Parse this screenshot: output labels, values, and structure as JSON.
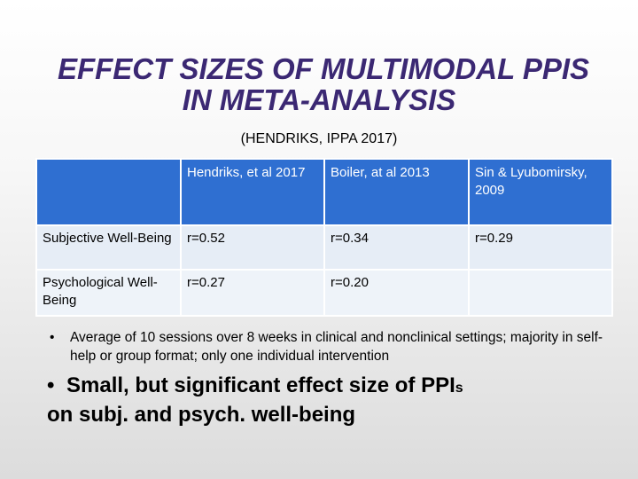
{
  "slide": {
    "title_line1": "EFFECT SIZES OF MULTIMODAL PPIS",
    "title_line2": "IN META-ANALYSIS",
    "subtitle": "(HENDRIKS, IPPA 2017)"
  },
  "table": {
    "headers": [
      "",
      "Hendriks, et al 2017",
      "Boiler, at al 2013",
      "Sin & Lyubomirsky, 2009"
    ],
    "rows": [
      [
        "Subjective Well-Being",
        "r=0.52",
        "r=0.34",
        "r=0.29"
      ],
      [
        "Psychological Well-Being",
        "r=0.27",
        "r=0.20",
        ""
      ]
    ]
  },
  "bullets": {
    "marker": "•",
    "item1": "Average of 10 sessions over 8 weeks in clinical and nonclinical settings; majority in self-help or group format; only one individual intervention",
    "item2_main": "Small, but significant effect size of PPI",
    "item2_small_s": "s",
    "item2_tail": "on subj. and psych. well-being"
  },
  "colors": {
    "title": "#3b2873",
    "header_fill": "#2f6fd1",
    "row_fill": "#e6edf6"
  }
}
